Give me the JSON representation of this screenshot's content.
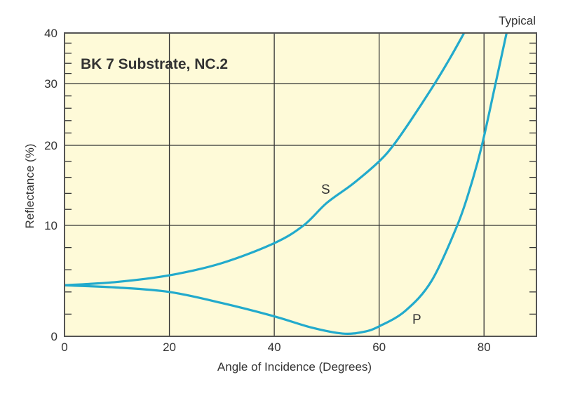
{
  "chart_data": {
    "type": "line",
    "title": "BK 7 Substrate, NC.2",
    "note": "Typical",
    "xlabel": "Angle of Incidence (Degrees)",
    "ylabel": "Reflectance (%)",
    "xlim": [
      0,
      90
    ],
    "ylim": [
      0,
      40
    ],
    "y_scale": "nonlinear, compressed toward higher values (decade spacing decreases)",
    "xticks": [
      0,
      20,
      40,
      60,
      80
    ],
    "yticks": [
      0,
      10,
      20,
      30,
      40
    ],
    "y_minor_step": 2,
    "grid": true,
    "colors": {
      "series": "#22aacc",
      "background": "#fefad8",
      "grid": "#333333"
    },
    "series": [
      {
        "name": "S",
        "points": [
          [
            0,
            4.6
          ],
          [
            10,
            4.9
          ],
          [
            20,
            5.5
          ],
          [
            30,
            6.6
          ],
          [
            40,
            8.4
          ],
          [
            45.6,
            10
          ],
          [
            50,
            12.8
          ],
          [
            55,
            15.2
          ],
          [
            60,
            18
          ],
          [
            62.7,
            20
          ],
          [
            66,
            24
          ],
          [
            70.6,
            30
          ],
          [
            73.5,
            35
          ],
          [
            76.2,
            40
          ]
        ]
      },
      {
        "name": "P",
        "points": [
          [
            0,
            4.6
          ],
          [
            10,
            4.4
          ],
          [
            20,
            4.0
          ],
          [
            30,
            3.0
          ],
          [
            40,
            1.8
          ],
          [
            47,
            0.8
          ],
          [
            53,
            0.25
          ],
          [
            57,
            0.4
          ],
          [
            60,
            0.9
          ],
          [
            65,
            2.3
          ],
          [
            70,
            5
          ],
          [
            74.9,
            10
          ],
          [
            77.5,
            15
          ],
          [
            79.6,
            20
          ],
          [
            82.2,
            30
          ],
          [
            84.3,
            40
          ]
        ]
      }
    ]
  }
}
